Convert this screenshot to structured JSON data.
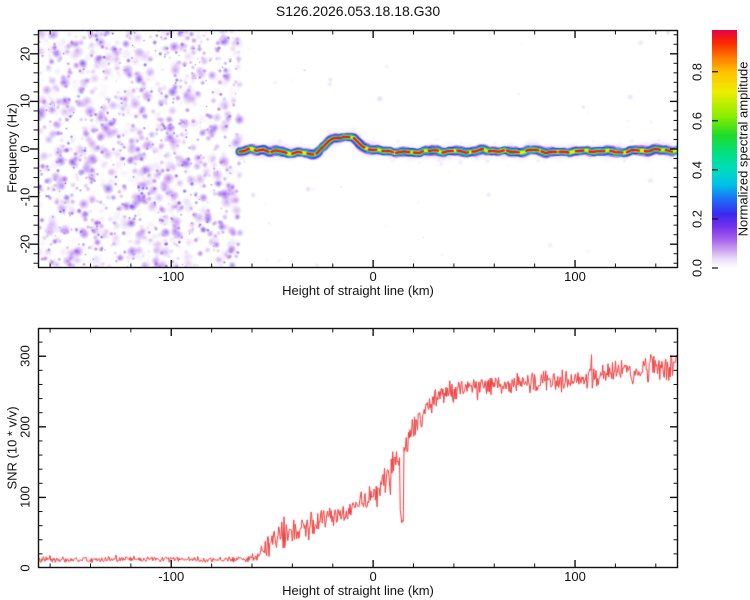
{
  "title": "S126.2026.053.18.18.G30",
  "chart_data": [
    {
      "type": "heatmap",
      "title": "S126.2026.053.18.18.G30",
      "xlabel": "Height of straight line (km)",
      "ylabel": "Frequency (Hz)",
      "xlim": [
        -166,
        151
      ],
      "ylim": [
        -25,
        25
      ],
      "x_major_ticks": [
        -100,
        0,
        100
      ],
      "x_minor_step": 20,
      "y_major_ticks": [
        -20,
        -10,
        0,
        10,
        20
      ],
      "y_minor_step": 2,
      "grid": false,
      "colorbar": {
        "label": "Normalized spectral amplitude",
        "ticks": [
          0,
          0.2,
          0.4,
          0.6,
          0.8
        ],
        "range": [
          0,
          0.97
        ],
        "position": "right"
      },
      "colormap_stops": [
        [
          0.0,
          "#ffffff"
        ],
        [
          0.03,
          "#efe6fa"
        ],
        [
          0.07,
          "#cfa9f1"
        ],
        [
          0.12,
          "#a35ded"
        ],
        [
          0.17,
          "#7430ea"
        ],
        [
          0.22,
          "#3a2af2"
        ],
        [
          0.28,
          "#1e6ef8"
        ],
        [
          0.34,
          "#00c2e8"
        ],
        [
          0.4,
          "#00dcc0"
        ],
        [
          0.46,
          "#00e08c"
        ],
        [
          0.54,
          "#1edc2a"
        ],
        [
          0.62,
          "#8cee00"
        ],
        [
          0.72,
          "#f0ee00"
        ],
        [
          0.8,
          "#ffc000"
        ],
        [
          0.86,
          "#ff7800"
        ],
        [
          0.92,
          "#fb2800"
        ],
        [
          0.97,
          "#e8004c"
        ]
      ],
      "noise_region": {
        "km_start": -166,
        "km_end": -66,
        "amplitude_range": [
          0,
          0.2
        ],
        "description": "dense purple speckle noise filling full frequency band (no signal)"
      },
      "sparse_noise": {
        "km_start": -66,
        "km_end": 151,
        "description": "white background with sparse faint purple dots"
      },
      "signal_trace": {
        "core_amplitude": 0.95,
        "halo_halfwidth_hz": 3,
        "freq_hz_at_km": [
          [
            -66,
            -0.4
          ],
          [
            -62,
            -0.1
          ],
          [
            -58,
            -0.45
          ],
          [
            -54,
            -0.1
          ],
          [
            -50,
            -0.5
          ],
          [
            -46,
            -0.55
          ],
          [
            -42,
            -0.8
          ],
          [
            -38,
            -0.9
          ],
          [
            -34,
            -1.2
          ],
          [
            -31,
            -1.35
          ],
          [
            -28,
            -0.9
          ],
          [
            -25,
            0.2
          ],
          [
            -22,
            1.6
          ],
          [
            -19,
            2.4
          ],
          [
            -16,
            2.75
          ],
          [
            -13,
            2.8
          ],
          [
            -10,
            2.3
          ],
          [
            -8,
            1.5
          ],
          [
            -6,
            0.8
          ],
          [
            -4,
            0.3
          ],
          [
            -2,
            -0.1
          ],
          [
            0,
            -0.25
          ],
          [
            4,
            -0.5
          ],
          [
            8,
            -0.35
          ],
          [
            12,
            -0.5
          ],
          [
            16,
            -0.6
          ],
          [
            20,
            -0.75
          ],
          [
            24,
            -0.6
          ],
          [
            28,
            -0.65
          ],
          [
            32,
            -0.4
          ],
          [
            36,
            -0.5
          ],
          [
            40,
            -0.45
          ],
          [
            48,
            -0.55
          ],
          [
            56,
            -0.5
          ],
          [
            64,
            -0.35
          ],
          [
            72,
            -0.5
          ],
          [
            80,
            -0.45
          ],
          [
            88,
            -0.55
          ],
          [
            96,
            -0.4
          ],
          [
            104,
            -0.5
          ],
          [
            112,
            -0.45
          ],
          [
            120,
            -0.35
          ],
          [
            128,
            -0.45
          ],
          [
            136,
            -0.3
          ],
          [
            144,
            -0.2
          ],
          [
            151,
            -0.1
          ]
        ]
      }
    },
    {
      "type": "line",
      "xlabel": "Height of straight line (km)",
      "ylabel": "SNR (10 * v/v)",
      "xlim": [
        -166,
        151
      ],
      "ylim": [
        0,
        340
      ],
      "x_major_ticks": [
        -100,
        0,
        100
      ],
      "x_minor_step": 20,
      "y_major_ticks": [
        0,
        100,
        200,
        300
      ],
      "y_minor_step": 20,
      "grid": false,
      "line_color": "#ee3c3c",
      "series": [
        {
          "name": "SNR",
          "profile_points": [
            [
              -166,
              12
            ],
            [
              -150,
              12
            ],
            [
              -130,
              12
            ],
            [
              -110,
              13
            ],
            [
              -90,
              12
            ],
            [
              -70,
              12
            ],
            [
              -58,
              14
            ],
            [
              -54,
              28
            ],
            [
              -50,
              40
            ],
            [
              -46,
              48
            ],
            [
              -42,
              52
            ],
            [
              -38,
              55
            ],
            [
              -34,
              60
            ],
            [
              -30,
              63
            ],
            [
              -26,
              67
            ],
            [
              -22,
              70
            ],
            [
              -18,
              74
            ],
            [
              -14,
              80
            ],
            [
              -10,
              86
            ],
            [
              -6,
              92
            ],
            [
              -2,
              98
            ],
            [
              2,
              108
            ],
            [
              6,
              122
            ],
            [
              10,
              140
            ],
            [
              14,
              160
            ],
            [
              18,
              185
            ],
            [
              22,
              210
            ],
            [
              26,
              228
            ],
            [
              30,
              240
            ],
            [
              34,
              247
            ],
            [
              38,
              251
            ],
            [
              44,
              254
            ],
            [
              52,
              256
            ],
            [
              60,
              258
            ],
            [
              70,
              261
            ],
            [
              80,
              263
            ],
            [
              90,
              266
            ],
            [
              100,
              268
            ],
            [
              110,
              271
            ],
            [
              120,
              275
            ],
            [
              130,
              279
            ],
            [
              140,
              284
            ],
            [
              151,
              288
            ]
          ],
          "noise_amplitude_floor": 4,
          "noise_amplitude_transition": 16,
          "noise_amplitude_plateau": 12,
          "dips": [
            {
              "km": 14.2,
              "snr": 62
            },
            {
              "km": 8.4,
              "snr": 95
            }
          ]
        }
      ]
    }
  ]
}
